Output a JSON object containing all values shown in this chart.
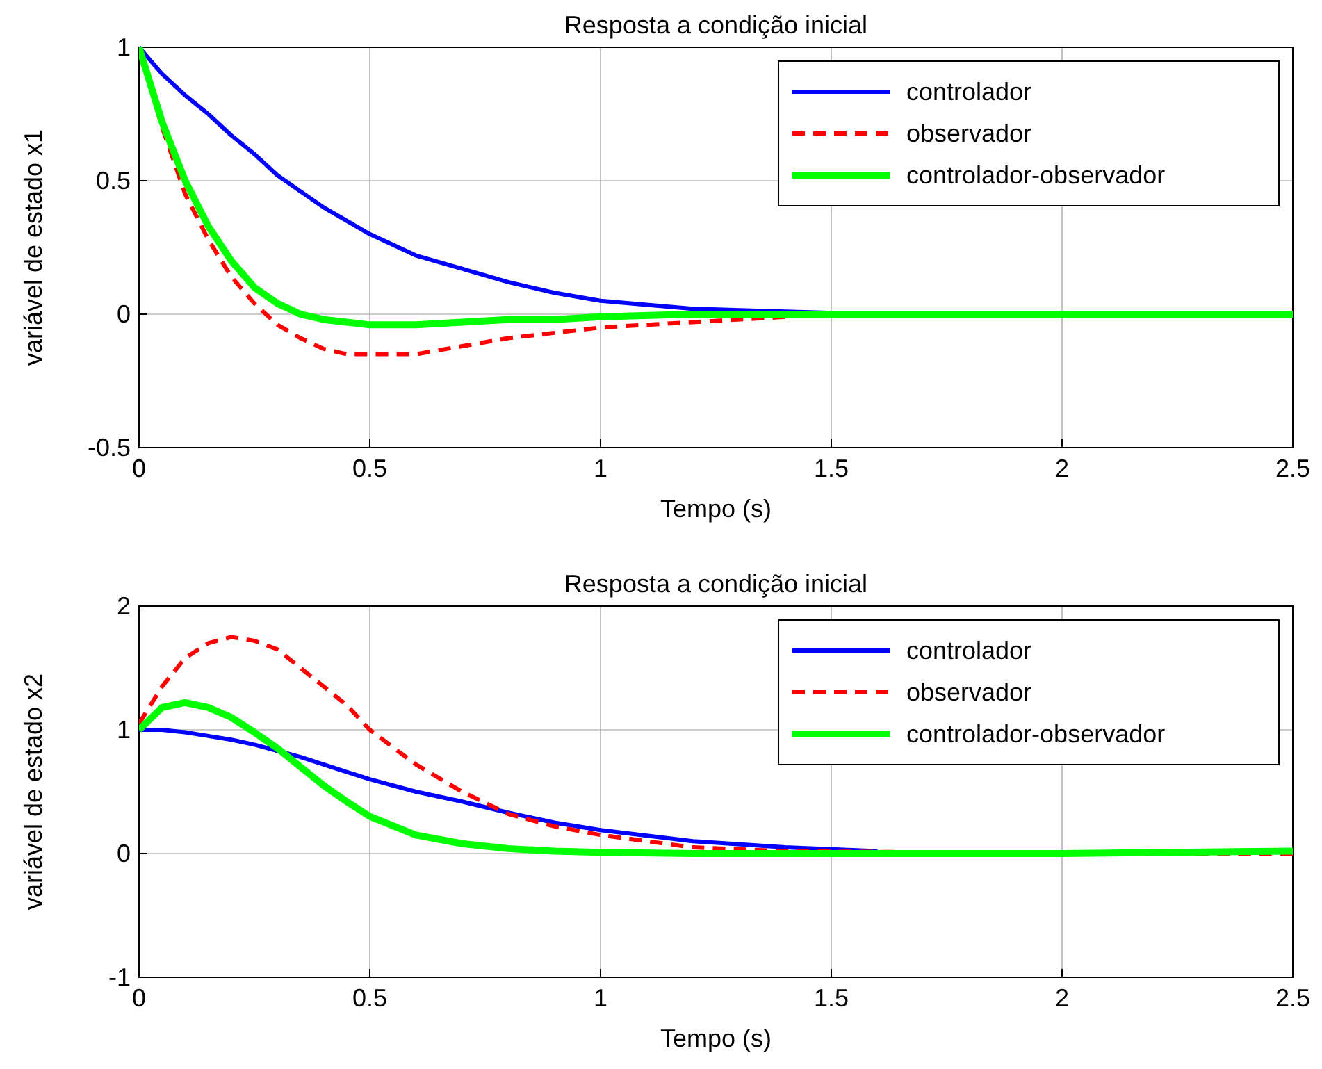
{
  "chart_data": [
    {
      "type": "line",
      "title": "Resposta a condição inicial",
      "xlabel": "Tempo (s)",
      "ylabel": "variável de estado x1",
      "x": [
        0,
        0.05,
        0.1,
        0.15,
        0.2,
        0.25,
        0.3,
        0.35,
        0.4,
        0.45,
        0.5,
        0.6,
        0.7,
        0.8,
        0.9,
        1.0,
        1.2,
        1.4,
        1.6,
        2.0,
        2.5
      ],
      "xlim": [
        0,
        2.5
      ],
      "xticks": [
        0,
        0.5,
        1,
        1.5,
        2,
        2.5
      ],
      "ylim": [
        -0.5,
        1
      ],
      "yticks": [
        -0.5,
        0,
        0.5,
        1
      ],
      "grid": true,
      "legend": "top right",
      "series": [
        {
          "name": "controlador",
          "color": "#0000ff",
          "line_style": "solid",
          "values": [
            1,
            0.9,
            0.82,
            0.75,
            0.67,
            0.6,
            0.52,
            0.46,
            0.4,
            0.35,
            0.3,
            0.22,
            0.17,
            0.12,
            0.08,
            0.05,
            0.02,
            0.01,
            0,
            null,
            null
          ]
        },
        {
          "name": "observador",
          "color": "#ff0000",
          "line_style": "dashed",
          "values": [
            1,
            0.7,
            0.45,
            0.28,
            0.14,
            0.04,
            -0.04,
            -0.09,
            -0.13,
            -0.15,
            -0.15,
            -0.15,
            -0.12,
            -0.09,
            -0.07,
            -0.05,
            -0.03,
            -0.01,
            null,
            null,
            null
          ]
        },
        {
          "name": "controlador-observador",
          "color": "#00ff00",
          "line_style": "solid",
          "values": [
            1,
            0.72,
            0.5,
            0.33,
            0.2,
            0.1,
            0.04,
            0,
            -0.02,
            -0.03,
            -0.04,
            -0.04,
            -0.03,
            -0.02,
            -0.02,
            -0.01,
            0,
            0,
            0,
            0,
            0
          ]
        }
      ]
    },
    {
      "type": "line",
      "title": "Resposta a condição inicial",
      "xlabel": "Tempo (s)",
      "ylabel": "variável de estado x2",
      "x": [
        0,
        0.05,
        0.1,
        0.15,
        0.2,
        0.25,
        0.3,
        0.35,
        0.4,
        0.45,
        0.5,
        0.6,
        0.7,
        0.8,
        0.9,
        1.0,
        1.2,
        1.4,
        1.6,
        2.0,
        2.5
      ],
      "xlim": [
        0,
        2.5
      ],
      "xticks": [
        0,
        0.5,
        1,
        1.5,
        2,
        2.5
      ],
      "ylim": [
        -1,
        2
      ],
      "yticks": [
        -1,
        0,
        1,
        2
      ],
      "grid": true,
      "legend": "top right",
      "series": [
        {
          "name": "controlador",
          "color": "#0000ff",
          "line_style": "solid",
          "values": [
            1,
            1,
            0.98,
            0.95,
            0.92,
            0.88,
            0.83,
            0.78,
            0.72,
            0.66,
            0.6,
            0.5,
            0.42,
            0.33,
            0.25,
            0.19,
            0.1,
            0.05,
            0.02,
            null,
            null
          ]
        },
        {
          "name": "observador",
          "color": "#ff0000",
          "line_style": "dashed",
          "values": [
            1.05,
            1.35,
            1.58,
            1.7,
            1.75,
            1.72,
            1.65,
            1.5,
            1.35,
            1.2,
            1,
            0.72,
            0.5,
            0.32,
            0.22,
            0.15,
            0.05,
            0.02,
            null,
            0,
            0
          ]
        },
        {
          "name": "controlador-observador",
          "color": "#00ff00",
          "line_style": "solid",
          "values": [
            1,
            1.18,
            1.22,
            1.18,
            1.1,
            0.98,
            0.85,
            0.7,
            0.55,
            0.42,
            0.3,
            0.15,
            0.08,
            0.04,
            0.02,
            0.01,
            0,
            0,
            0,
            0,
            0.02
          ]
        }
      ]
    }
  ]
}
